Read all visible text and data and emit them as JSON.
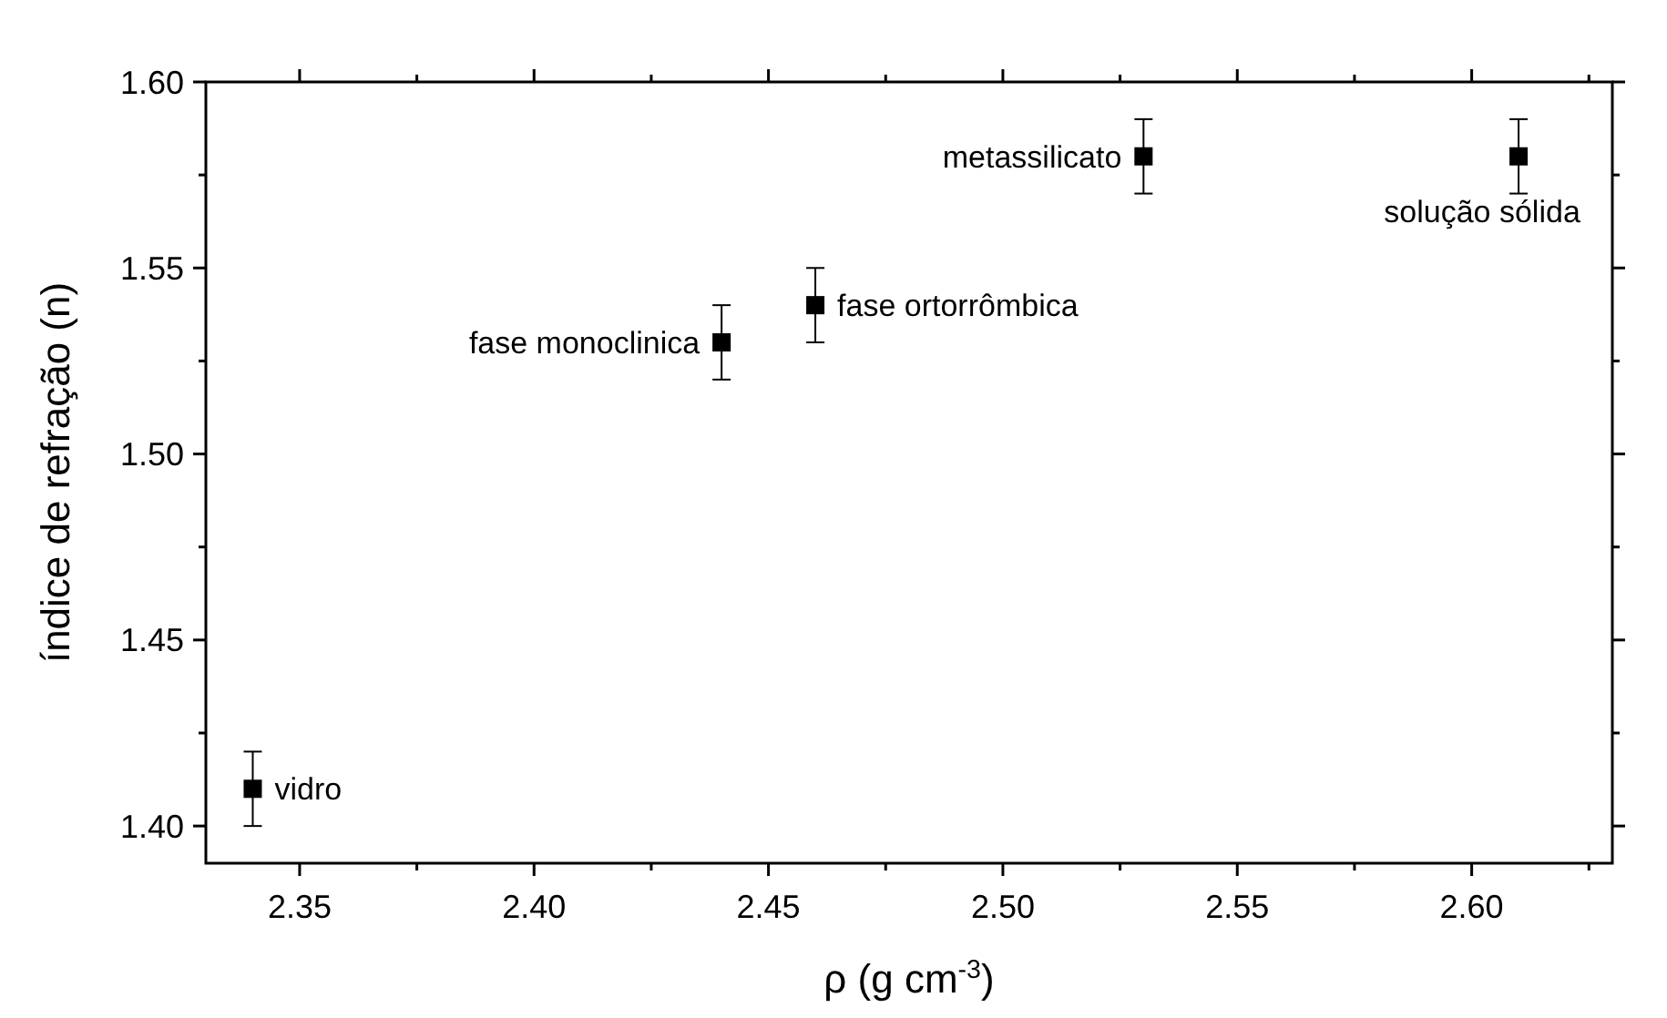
{
  "chart_data": {
    "type": "scatter",
    "xlabel": "ρ (g cm$^{-3}$)",
    "ylabel": "índice de refração (n)",
    "x": [
      2.34,
      2.44,
      2.46,
      2.53,
      2.61
    ],
    "values": [
      1.41,
      1.53,
      1.54,
      1.58,
      1.58
    ],
    "errors": [
      0.01,
      0.01,
      0.01,
      0.01,
      0.01
    ],
    "color": "#000000",
    "marker": "square",
    "xlim": [
      2.33,
      2.63
    ],
    "xticks": [
      {
        "value": 2.35,
        "label": "2.35"
      },
      {
        "value": 2.375,
        "label": null
      },
      {
        "value": 2.4,
        "label": "2.40"
      },
      {
        "value": 2.425,
        "label": null
      },
      {
        "value": 2.45,
        "label": "2.45"
      },
      {
        "value": 2.475,
        "label": null
      },
      {
        "value": 2.5,
        "label": "2.50"
      },
      {
        "value": 2.525,
        "label": null
      },
      {
        "value": 2.55,
        "label": "2.55"
      },
      {
        "value": 2.575,
        "label": null
      },
      {
        "value": 2.6,
        "label": "2.60"
      },
      {
        "value": 2.625,
        "label": null
      }
    ],
    "ylim": [
      1.39,
      1.6
    ],
    "yticks": [
      {
        "value": 1.4,
        "label": "1.40"
      },
      {
        "value": 1.425,
        "label": null
      },
      {
        "value": 1.45,
        "label": "1.45"
      },
      {
        "value": 1.475,
        "label": null
      },
      {
        "value": 1.5,
        "label": "1.50"
      },
      {
        "value": 1.525,
        "label": null
      },
      {
        "value": 1.55,
        "label": "1.55"
      },
      {
        "value": 1.575,
        "label": null
      },
      {
        "value": 1.6,
        "label": "1.60"
      }
    ],
    "grid": false,
    "annotations": [
      {
        "text": "vidro",
        "x": 2.34,
        "y": 1.41
      },
      {
        "text": "fase monoclinica",
        "x": 2.44,
        "y": 1.53
      },
      {
        "text": "fase ortorrômbica",
        "x": 2.46,
        "y": 1.54
      },
      {
        "text": "metassilicato",
        "x": 2.53,
        "y": 1.58
      },
      {
        "text": "solução sólida",
        "x": 2.61,
        "y": 1.58
      }
    ]
  }
}
